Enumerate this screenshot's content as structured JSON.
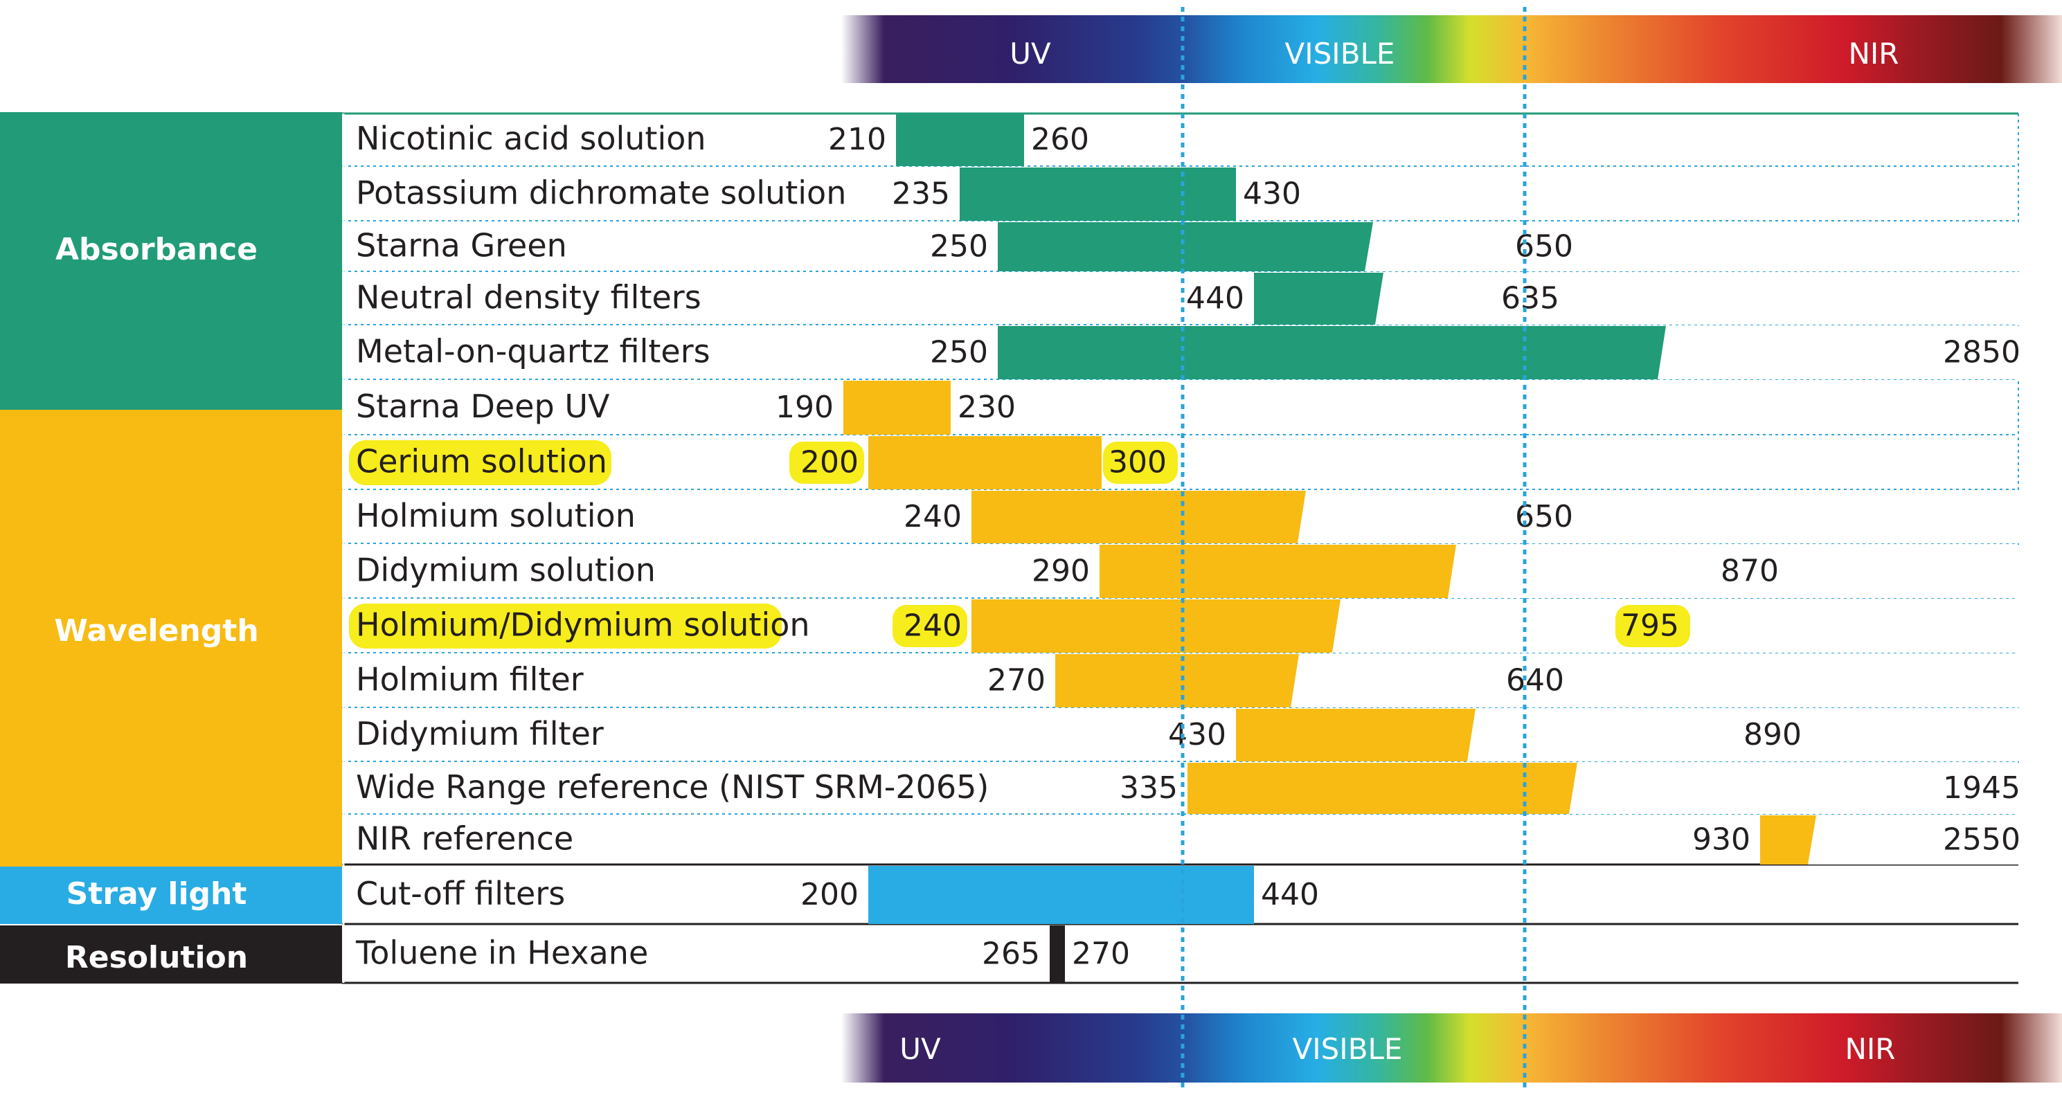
{
  "colors": {
    "absorbance": "#219b78",
    "wavelength": "#f8bb14",
    "stray_light": "#29ace3",
    "resolution": "#231f20",
    "highlight": "#f7ec1c",
    "divider": "#2aa3dc"
  },
  "chart_data": {
    "type": "range-bar",
    "title": "",
    "spectrum_bands": [
      "UV",
      "VISIBLE",
      "NIR"
    ],
    "bottom_spectrum_bands": [
      "UV",
      "VISIBLE",
      "NIR"
    ],
    "categories": [
      {
        "name": "Absorbance",
        "color_key": "absorbance"
      },
      {
        "name": "Wavelength",
        "color_key": "wavelength"
      },
      {
        "name": "Stray light",
        "color_key": "stray_light"
      },
      {
        "name": "Resolution",
        "color_key": "resolution"
      }
    ],
    "rows": [
      {
        "name": "Nicotinic acid solution",
        "category": "Absorbance",
        "start": 210,
        "end": 260,
        "start_label": "210",
        "end_label": "260"
      },
      {
        "name": "Potassium dichromate solution",
        "category": "Absorbance",
        "start": 235,
        "end": 430,
        "start_label": "235",
        "end_label": "430"
      },
      {
        "name": "Starna Green",
        "category": "Absorbance",
        "start": 250,
        "end": 650,
        "start_label": "250",
        "end_label": "650"
      },
      {
        "name": "Neutral density filters",
        "category": "Absorbance",
        "start": 440,
        "end": 635,
        "start_label": "440",
        "end_label": "635"
      },
      {
        "name": "Metal-on-quartz filters",
        "category": "Absorbance",
        "start": 250,
        "end": 2850,
        "start_label": "250",
        "end_label": "2850"
      },
      {
        "name": "Starna Deep UV",
        "category": "Wavelength",
        "start": 190,
        "end": 230,
        "start_label": "190",
        "end_label": "230"
      },
      {
        "name": "Cerium solution",
        "category": "Wavelength",
        "start": 200,
        "end": 300,
        "start_label": "200",
        "end_label": "300",
        "highlighted": true
      },
      {
        "name": "Holmium solution",
        "category": "Wavelength",
        "start": 240,
        "end": 650,
        "start_label": "240",
        "end_label": "650"
      },
      {
        "name": "Didymium solution",
        "category": "Wavelength",
        "start": 290,
        "end": 870,
        "start_label": "290",
        "end_label": "870"
      },
      {
        "name": "Holmium/Didymium solution",
        "category": "Wavelength",
        "start": 240,
        "end": 795,
        "start_label": "240",
        "end_label": "795",
        "highlighted": true
      },
      {
        "name": "Holmium filter",
        "category": "Wavelength",
        "start": 270,
        "end": 640,
        "start_label": "270",
        "end_label": "640"
      },
      {
        "name": "Didymium filter",
        "category": "Wavelength",
        "start": 430,
        "end": 890,
        "start_label": "430",
        "end_label": "890"
      },
      {
        "name": "Wide Range reference (NIST SRM-2065)",
        "category": "Wavelength",
        "start": 335,
        "end": 1945,
        "start_label": "335",
        "end_label": "1945"
      },
      {
        "name": "NIR reference",
        "category": "Wavelength",
        "start": 930,
        "end": 2550,
        "start_label": "930",
        "end_label": "2550"
      },
      {
        "name": "Cut-off filters",
        "category": "Stray light",
        "start": 200,
        "end": 440,
        "start_label": "200",
        "end_label": "440"
      },
      {
        "name": "Toluene in Hexane",
        "category": "Resolution",
        "start": 265,
        "end": 270,
        "start_label": "265",
        "end_label": "270"
      }
    ]
  }
}
